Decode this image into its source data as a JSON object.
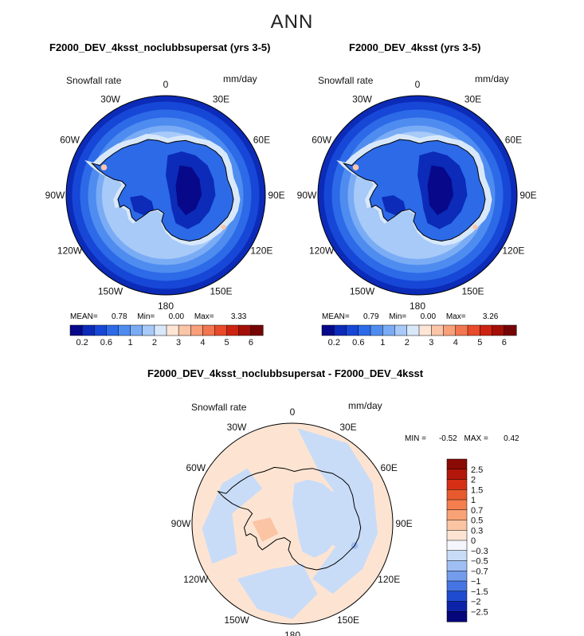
{
  "main_title": "ANN",
  "panels": [
    {
      "title": "F2000_DEV_4ksst_noclubbsupersat (yrs 3-5)",
      "variable": "Snowfall rate",
      "units": "mm/day",
      "mean_label": "MEAN=",
      "mean_value": "0.78",
      "min_label": "Min=",
      "min_value": "0.00",
      "max_label": "Max=",
      "max_value": "3.33"
    },
    {
      "title": "F2000_DEV_4ksst (yrs 3-5)",
      "variable": "Snowfall rate",
      "units": "mm/day",
      "mean_label": "MEAN=",
      "mean_value": "0.79",
      "min_label": "Min=",
      "min_value": "0.00",
      "max_label": "Max=",
      "max_value": "3.26"
    },
    {
      "title": "F2000_DEV_4ksst_noclubbsupersat - F2000_DEV_4ksst",
      "variable": "Snowfall rate",
      "units": "mm/day",
      "min_label": "MIN =",
      "min_value": "-0.52",
      "max_label": "MAX =",
      "max_value": "0.42"
    }
  ],
  "lon_labels": [
    "0",
    "30E",
    "60E",
    "90E",
    "120E",
    "150E",
    "180",
    "150W",
    "120W",
    "90W",
    "60W",
    "30W"
  ],
  "chart_data": [
    {
      "type": "heatmap",
      "projection": "south polar stereographic",
      "title": "F2000_DEV_4ksst_noclubbsupersat (yrs 3-5)",
      "field": "Snowfall rate (mm/day)",
      "stats": {
        "mean": 0.78,
        "min": 0.0,
        "max": 3.33
      },
      "colorbar_levels": [
        0.2,
        0.6,
        1,
        2,
        3,
        4,
        5,
        6
      ],
      "colorbar_colors": [
        "#08088a",
        "#0b2bb8",
        "#1747d6",
        "#2c6ae8",
        "#4f8cf0",
        "#7aacf5",
        "#a8caf8",
        "#d8e8fb",
        "#fde6d6",
        "#fbc6a8",
        "#f8a07a",
        "#f27650",
        "#e84a2a",
        "#cc2410",
        "#a40f08",
        "#750505"
      ]
    },
    {
      "type": "heatmap",
      "projection": "south polar stereographic",
      "title": "F2000_DEV_4ksst (yrs 3-5)",
      "field": "Snowfall rate (mm/day)",
      "stats": {
        "mean": 0.79,
        "min": 0.0,
        "max": 3.26
      },
      "colorbar_levels": [
        0.2,
        0.6,
        1,
        2,
        3,
        4,
        5,
        6
      ],
      "colorbar_colors": [
        "#08088a",
        "#0b2bb8",
        "#1747d6",
        "#2c6ae8",
        "#4f8cf0",
        "#7aacf5",
        "#a8caf8",
        "#d8e8fb",
        "#fde6d6",
        "#fbc6a8",
        "#f8a07a",
        "#f27650",
        "#e84a2a",
        "#cc2410",
        "#a40f08",
        "#750505"
      ]
    },
    {
      "type": "heatmap",
      "projection": "south polar stereographic",
      "title": "F2000_DEV_4ksst_noclubbsupersat - F2000_DEV_4ksst",
      "field": "Snowfall rate difference (mm/day)",
      "stats": {
        "min": -0.52,
        "max": 0.42
      },
      "colorbar_levels": [
        "2.5",
        "2",
        "1.5",
        "1",
        "0.7",
        "0.5",
        "0.3",
        "0",
        "−0.3",
        "−0.5",
        "−0.7",
        "−1",
        "−1.5",
        "−2",
        "−2.5"
      ],
      "colorbar_colors": [
        "#8a0a05",
        "#b3160a",
        "#d42f14",
        "#e85a2e",
        "#f47e4e",
        "#f8a276",
        "#fbc4a3",
        "#fde4d2",
        "#f4f6fb",
        "#c8dcf8",
        "#9fbff4",
        "#739cec",
        "#4674e2",
        "#1f4bd0",
        "#0c23a8",
        "#06067a"
      ]
    }
  ]
}
